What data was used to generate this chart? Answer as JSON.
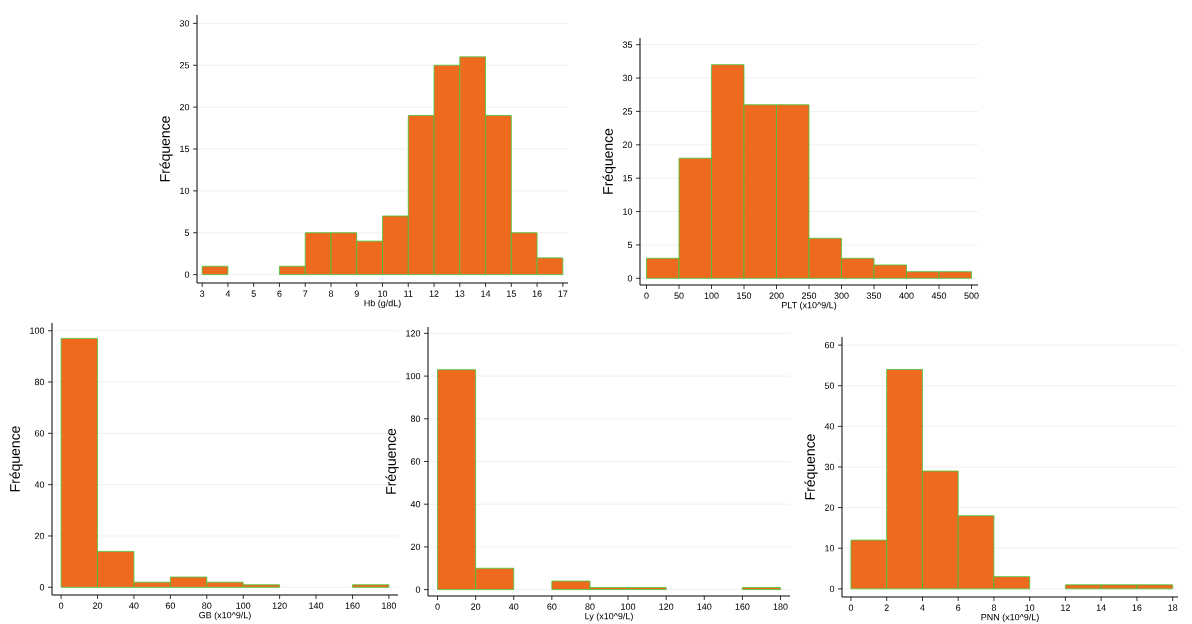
{
  "chart_data": [
    {
      "type": "histogram",
      "xlabel": "Hb (g/dL)",
      "ylabel": "Fréquence",
      "color": "#ee6a1f",
      "grid": "y",
      "bins": [
        3,
        4,
        5,
        6,
        7,
        8,
        9,
        10,
        11,
        12,
        13,
        14,
        15,
        16,
        17
      ],
      "values": [
        1,
        0,
        0,
        1,
        5,
        5,
        4,
        7,
        19,
        25,
        26,
        19,
        5,
        2
      ],
      "xlim": [
        2.8,
        17.2
      ],
      "ylim": [
        -1,
        31
      ],
      "xticks": [
        3,
        4,
        5,
        6,
        7,
        8,
        9,
        10,
        11,
        12,
        13,
        14,
        15,
        16,
        17
      ],
      "yticks": [
        0,
        5,
        10,
        15,
        20,
        25,
        30
      ]
    },
    {
      "type": "histogram",
      "xlabel": "PLT (x10^9/L)",
      "ylabel": "Fréquence",
      "color": "#ee6a1f",
      "grid": "y",
      "bins": [
        0,
        50,
        100,
        150,
        200,
        250,
        300,
        350,
        400,
        450,
        500
      ],
      "values": [
        3,
        18,
        32,
        26,
        26,
        6,
        3,
        2,
        1,
        1
      ],
      "xlim": [
        -10,
        510
      ],
      "ylim": [
        -1,
        36
      ],
      "xticks": [
        0,
        50,
        100,
        150,
        200,
        250,
        300,
        350,
        400,
        450,
        500
      ],
      "yticks": [
        0,
        5,
        10,
        15,
        20,
        25,
        30,
        35
      ]
    },
    {
      "type": "histogram",
      "xlabel": "GB (x10^9/L)",
      "ylabel": "Fréquence",
      "color": "#ee6a1f",
      "grid": "y",
      "bins": [
        0,
        20,
        40,
        60,
        80,
        100,
        120,
        140,
        160,
        180
      ],
      "values": [
        97,
        14,
        2,
        4,
        2,
        1,
        0,
        0,
        1
      ],
      "xlim": [
        -5,
        185
      ],
      "ylim": [
        -3,
        103
      ],
      "xticks": [
        0,
        20,
        40,
        60,
        80,
        100,
        120,
        140,
        160,
        180
      ],
      "yticks": [
        0,
        20,
        40,
        60,
        80,
        100
      ]
    },
    {
      "type": "histogram",
      "xlabel": "Ly (x10^9/L)",
      "ylabel": "Fréquence",
      "color": "#ee6a1f",
      "grid": "y",
      "bins": [
        0,
        20,
        40,
        60,
        80,
        100,
        120,
        140,
        160,
        180
      ],
      "values": [
        103,
        10,
        0,
        4,
        1,
        1,
        0,
        0,
        1
      ],
      "xlim": [
        -5,
        185
      ],
      "ylim": [
        -3,
        123
      ],
      "xticks": [
        0,
        20,
        40,
        60,
        80,
        100,
        120,
        140,
        160,
        180
      ],
      "yticks": [
        0,
        20,
        40,
        60,
        80,
        100,
        120
      ]
    },
    {
      "type": "histogram",
      "xlabel": "PNN (x10^9/L)",
      "ylabel": "Fréquence",
      "color": "#ee6a1f",
      "grid": "y",
      "bins": [
        0,
        2,
        4,
        6,
        8,
        10,
        12,
        14,
        16,
        18
      ],
      "values": [
        12,
        54,
        29,
        18,
        3,
        0,
        1,
        1,
        1
      ],
      "xlim": [
        -0.5,
        18.3
      ],
      "ylim": [
        -2,
        62
      ],
      "xticks": [
        0,
        2,
        4,
        6,
        8,
        10,
        12,
        14,
        16,
        18
      ],
      "yticks": [
        0,
        10,
        20,
        30,
        40,
        50,
        60
      ]
    }
  ]
}
